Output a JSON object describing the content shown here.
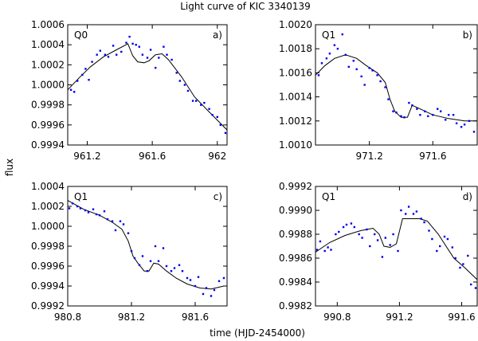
{
  "figure": {
    "title": "Light curve of KIC 3340139",
    "xlabel": "time (HJD-2454000)",
    "ylabel": "flux",
    "point_color": "#0000ee",
    "line_color": "#000000"
  },
  "chart_data": [
    {
      "type": "scatter",
      "quarter": "Q0",
      "tag": "a)",
      "xlim": [
        961.08,
        962.06
      ],
      "ylim": [
        0.9994,
        1.0006
      ],
      "xticks": [
        961.2,
        961.6,
        962.0
      ],
      "xtick_labels": [
        "961.2",
        "961.6",
        "962"
      ],
      "yticks": [
        0.9994,
        0.9996,
        0.9998,
        1.0,
        1.0002,
        1.0004,
        1.0006
      ],
      "ytick_labels": [
        "0.9994",
        "0.9996",
        "0.9998",
        "1.0000",
        "1.0002",
        "1.0004",
        "1.0006"
      ],
      "series": [
        {
          "kind": "points",
          "x": [
            961.1,
            961.12,
            961.14,
            961.17,
            961.19,
            961.21,
            961.23,
            961.26,
            961.28,
            961.31,
            961.33,
            961.36,
            961.38,
            961.41,
            961.44,
            961.46,
            961.48,
            961.5,
            961.52,
            961.54,
            961.57,
            961.59,
            961.62,
            961.64,
            961.67,
            961.69,
            961.72,
            961.75,
            961.77,
            961.8,
            961.82,
            961.85,
            961.87,
            961.9,
            961.92,
            961.95,
            961.97,
            962.0,
            962.02,
            962.05
          ],
          "y": [
            0.99995,
            0.99993,
            1.00004,
            1.0001,
            1.00016,
            1.00005,
            1.00023,
            1.0003,
            1.00034,
            1.0003,
            1.00028,
            1.00039,
            1.0003,
            1.00033,
            1.00042,
            1.00048,
            1.00041,
            1.0004,
            1.00038,
            1.0003,
            1.00027,
            1.00035,
            1.00017,
            1.00027,
            1.00038,
            1.0003,
            1.00025,
            1.00012,
            1.00004,
            1.0,
            0.99994,
            0.99984,
            0.99984,
            0.9998,
            0.99982,
            0.99976,
            0.9997,
            0.99968,
            0.9996,
            0.99952
          ]
        },
        {
          "kind": "model",
          "x": [
            961.08,
            961.15,
            961.22,
            961.3,
            961.38,
            961.45,
            961.48,
            961.51,
            961.55,
            961.58,
            961.62,
            961.66,
            961.7,
            961.78,
            961.86,
            961.95,
            962.06
          ],
          "y": [
            0.99995,
            1.00007,
            1.00018,
            1.00028,
            1.00035,
            1.00041,
            1.00029,
            1.00023,
            1.00022,
            1.00024,
            1.0003,
            1.00031,
            1.00025,
            1.00008,
            0.99988,
            0.99973,
            0.99955
          ]
        }
      ]
    },
    {
      "type": "scatter",
      "quarter": "Q1",
      "tag": "b)",
      "xlim": [
        970.86,
        971.88
      ],
      "ylim": [
        1.001,
        1.002
      ],
      "xticks": [
        971.2,
        971.6
      ],
      "xtick_labels": [
        "971.2",
        "971.6"
      ],
      "yticks": [
        1.001,
        1.0012,
        1.0014,
        1.0016,
        1.0018,
        1.002
      ],
      "ytick_labels": [
        "1.0010",
        "1.0012",
        "1.0014",
        "1.0016",
        "1.0018",
        "1.0020"
      ],
      "series": [
        {
          "kind": "points",
          "x": [
            970.88,
            970.9,
            970.93,
            970.95,
            970.98,
            971.0,
            971.03,
            971.05,
            971.07,
            971.1,
            971.12,
            971.15,
            971.17,
            971.2,
            971.22,
            971.25,
            971.27,
            971.3,
            971.32,
            971.35,
            971.37,
            971.4,
            971.42,
            971.45,
            971.47,
            971.5,
            971.52,
            971.55,
            971.57,
            971.6,
            971.63,
            971.65,
            971.68,
            971.7,
            971.73,
            971.75,
            971.78,
            971.8,
            971.83,
            971.86
          ],
          "y": [
            1.00158,
            1.00168,
            1.00172,
            1.00176,
            1.00183,
            1.0018,
            1.00192,
            1.00175,
            1.00165,
            1.0017,
            1.00163,
            1.00157,
            1.0015,
            1.00164,
            1.00162,
            1.00158,
            1.00153,
            1.00148,
            1.00138,
            1.00128,
            1.00127,
            1.00124,
            1.00123,
            1.00135,
            1.00133,
            1.0013,
            1.00125,
            1.00128,
            1.00124,
            1.00125,
            1.0013,
            1.00128,
            1.00121,
            1.00125,
            1.00125,
            1.00118,
            1.00115,
            1.00117,
            1.0012,
            1.00111
          ]
        },
        {
          "kind": "model",
          "x": [
            970.86,
            970.92,
            970.98,
            971.05,
            971.12,
            971.18,
            971.25,
            971.3,
            971.33,
            971.36,
            971.4,
            971.44,
            971.47,
            971.52,
            971.6,
            971.7,
            971.8,
            971.88
          ],
          "y": [
            1.00158,
            1.00166,
            1.00172,
            1.00175,
            1.00172,
            1.00166,
            1.0016,
            1.00152,
            1.00138,
            1.00128,
            1.00123,
            1.00123,
            1.00133,
            1.0013,
            1.00125,
            1.00122,
            1.0012,
            1.0012
          ]
        }
      ]
    },
    {
      "type": "scatter",
      "quarter": "Q1",
      "tag": "c)",
      "xlim": [
        980.8,
        981.8
      ],
      "ylim": [
        0.9992,
        1.0004
      ],
      "xticks": [
        980.8,
        981.2,
        981.6
      ],
      "xtick_labels": [
        "980.8",
        "981.2",
        "981.6"
      ],
      "yticks": [
        0.9992,
        0.9994,
        0.9996,
        0.9998,
        1.0,
        1.0002,
        1.0004
      ],
      "ytick_labels": [
        "0.9992",
        "0.9994",
        "0.9996",
        "0.9998",
        "1.0000",
        "1.0002",
        "1.0004"
      ],
      "series": [
        {
          "kind": "points",
          "x": [
            980.81,
            980.83,
            980.86,
            980.88,
            980.91,
            980.93,
            980.96,
            980.98,
            981.0,
            981.03,
            981.05,
            981.08,
            981.1,
            981.13,
            981.15,
            981.18,
            981.2,
            981.22,
            981.25,
            981.27,
            981.3,
            981.32,
            981.35,
            981.37,
            981.4,
            981.42,
            981.45,
            981.47,
            981.5,
            981.52,
            981.55,
            981.57,
            981.6,
            981.62,
            981.65,
            981.67,
            981.7,
            981.72,
            981.75,
            981.78
          ],
          "y": [
            1.00018,
            1.00023,
            1.0002,
            1.00018,
            1.00016,
            1.00014,
            1.00017,
            1.00012,
            1.00011,
            1.00015,
            1.00007,
            1.00005,
            0.99996,
            1.00005,
            1.00002,
            0.99993,
            0.99975,
            0.99968,
            0.99961,
            0.9997,
            0.99955,
            0.99965,
            0.9998,
            0.99965,
            0.99978,
            0.9996,
            0.99955,
            0.99958,
            0.99961,
            0.99955,
            0.99948,
            0.99946,
            0.9994,
            0.99949,
            0.99932,
            0.99938,
            0.9993,
            0.99936,
            0.99945,
            0.99948
          ]
        },
        {
          "kind": "model",
          "x": [
            980.8,
            980.9,
            981.0,
            981.08,
            981.14,
            981.18,
            981.21,
            981.24,
            981.28,
            981.31,
            981.34,
            981.37,
            981.42,
            981.48,
            981.55,
            981.63,
            981.7,
            981.78
          ],
          "y": [
            1.00026,
            1.00017,
            1.00011,
            1.00004,
            0.99997,
            0.99985,
            0.9997,
            0.99963,
            0.99955,
            0.99955,
            0.99963,
            0.99962,
            0.99955,
            0.99948,
            0.99942,
            0.99938,
            0.99937,
            0.9994
          ]
        }
      ]
    },
    {
      "type": "scatter",
      "quarter": "Q1",
      "tag": "d)",
      "xlim": [
        990.66,
        991.7
      ],
      "ylim": [
        0.9982,
        0.9992
      ],
      "xticks": [
        990.8,
        991.2,
        991.6
      ],
      "xtick_labels": [
        "990.8",
        "991.2",
        "991.6"
      ],
      "yticks": [
        0.9982,
        0.9984,
        0.9986,
        0.9988,
        0.999,
        0.9992
      ],
      "ytick_labels": [
        "0.9982",
        "0.9984",
        "0.9986",
        "0.9988",
        "0.9990",
        "0.9992"
      ],
      "series": [
        {
          "kind": "points",
          "x": [
            990.67,
            990.69,
            990.72,
            990.74,
            990.76,
            990.79,
            990.81,
            990.84,
            990.86,
            990.89,
            990.91,
            990.94,
            990.96,
            990.99,
            991.01,
            991.04,
            991.06,
            991.09,
            991.11,
            991.14,
            991.16,
            991.19,
            991.21,
            991.24,
            991.26,
            991.29,
            991.31,
            991.34,
            991.36,
            991.39,
            991.41,
            991.44,
            991.46,
            991.49,
            991.51,
            991.54,
            991.56,
            991.59,
            991.61,
            991.64,
            991.66,
            991.69
          ],
          "y": [
            0.99867,
            0.99874,
            0.99866,
            0.99869,
            0.99867,
            0.9988,
            0.99882,
            0.99886,
            0.99888,
            0.99889,
            0.99886,
            0.9988,
            0.99877,
            0.99884,
            0.9987,
            0.9988,
            0.99875,
            0.99861,
            0.99877,
            0.99871,
            0.9988,
            0.99866,
            0.999,
            0.99897,
            0.99903,
            0.99897,
            0.99899,
            0.99893,
            0.9989,
            0.99883,
            0.99876,
            0.99866,
            0.9987,
            0.99878,
            0.99876,
            0.99869,
            0.9986,
            0.99852,
            0.99855,
            0.99862,
            0.99838,
            0.99835
          ]
        },
        {
          "kind": "model",
          "x": [
            990.66,
            990.75,
            990.85,
            990.95,
            991.03,
            991.07,
            991.1,
            991.14,
            991.18,
            991.22,
            991.27,
            991.33,
            991.38,
            991.45,
            991.55,
            991.62,
            991.7
          ],
          "y": [
            0.99865,
            0.99873,
            0.99879,
            0.99883,
            0.99885,
            0.9988,
            0.9987,
            0.99869,
            0.99872,
            0.99893,
            0.99893,
            0.99893,
            0.99891,
            0.9988,
            0.9986,
            0.99852,
            0.99842
          ]
        }
      ]
    }
  ]
}
